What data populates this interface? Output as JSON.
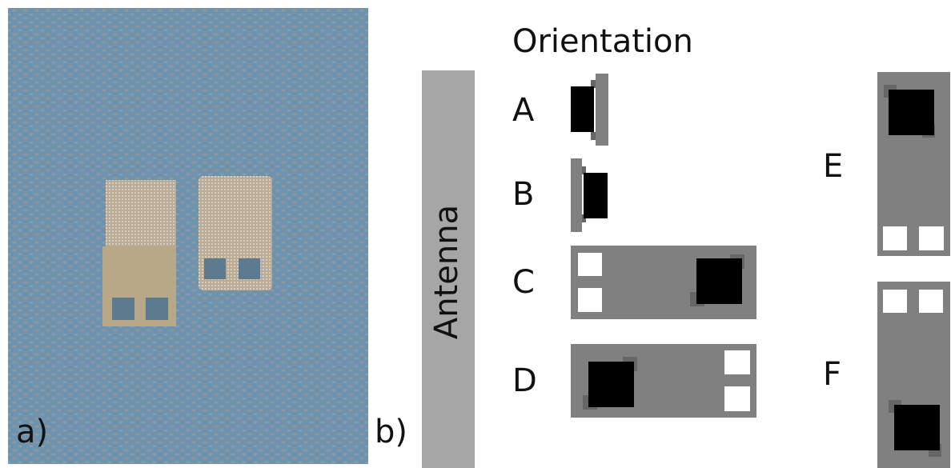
{
  "panel_a": {
    "label": "a)"
  },
  "panel_b": {
    "label": "b)",
    "title": "Orientation",
    "antenna": "Antenna",
    "orientations": [
      "A",
      "B",
      "C",
      "D",
      "E",
      "F"
    ]
  }
}
